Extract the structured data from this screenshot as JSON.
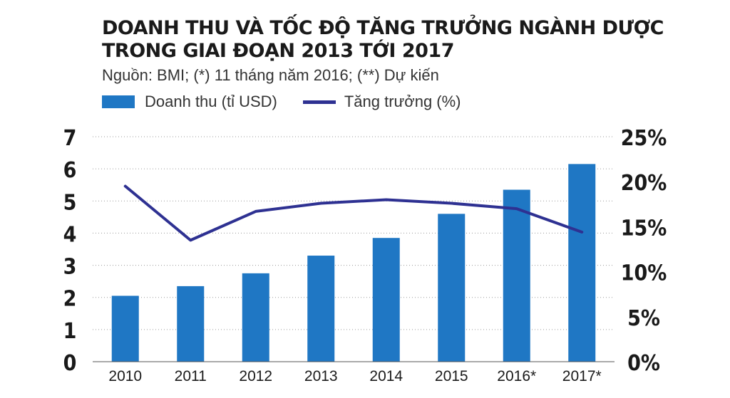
{
  "chart_data": {
    "type": "bar+line",
    "title_line1": "DOANH THU VÀ TỐC ĐỘ TĂNG TRƯỞNG NGÀNH DƯỢC",
    "title_line2": "TRONG GIAI ĐOẠN 2013 TỚI 2017",
    "subtitle": "Nguồn: BMI; (*) 11 tháng năm 2016; (**) Dự kiến",
    "categories": [
      "2010",
      "2011",
      "2012",
      "2013",
      "2014",
      "2015",
      "2016*",
      "2017*"
    ],
    "series": [
      {
        "name": "Doanh thu (tỉ USD)",
        "type": "bar",
        "axis": "left",
        "color": "#1f77c4",
        "values": [
          2.05,
          2.35,
          2.75,
          3.3,
          3.85,
          4.6,
          5.35,
          6.15
        ]
      },
      {
        "name": "Tăng trưởng (%)",
        "type": "line",
        "axis": "right",
        "color": "#2e3192",
        "values": [
          19.5,
          13.5,
          16.7,
          17.6,
          18.0,
          17.6,
          17.0,
          14.4
        ]
      }
    ],
    "left_axis": {
      "ticks": [
        "0",
        "1",
        "2",
        "3",
        "4",
        "5",
        "6",
        "7"
      ],
      "ylim": [
        0,
        7
      ]
    },
    "right_axis": {
      "ticks": [
        "0%",
        "5%",
        "10%",
        "15%",
        "20%",
        "25%"
      ],
      "ylim": [
        0,
        25
      ]
    },
    "grid": true,
    "legend_position": "top-left"
  }
}
